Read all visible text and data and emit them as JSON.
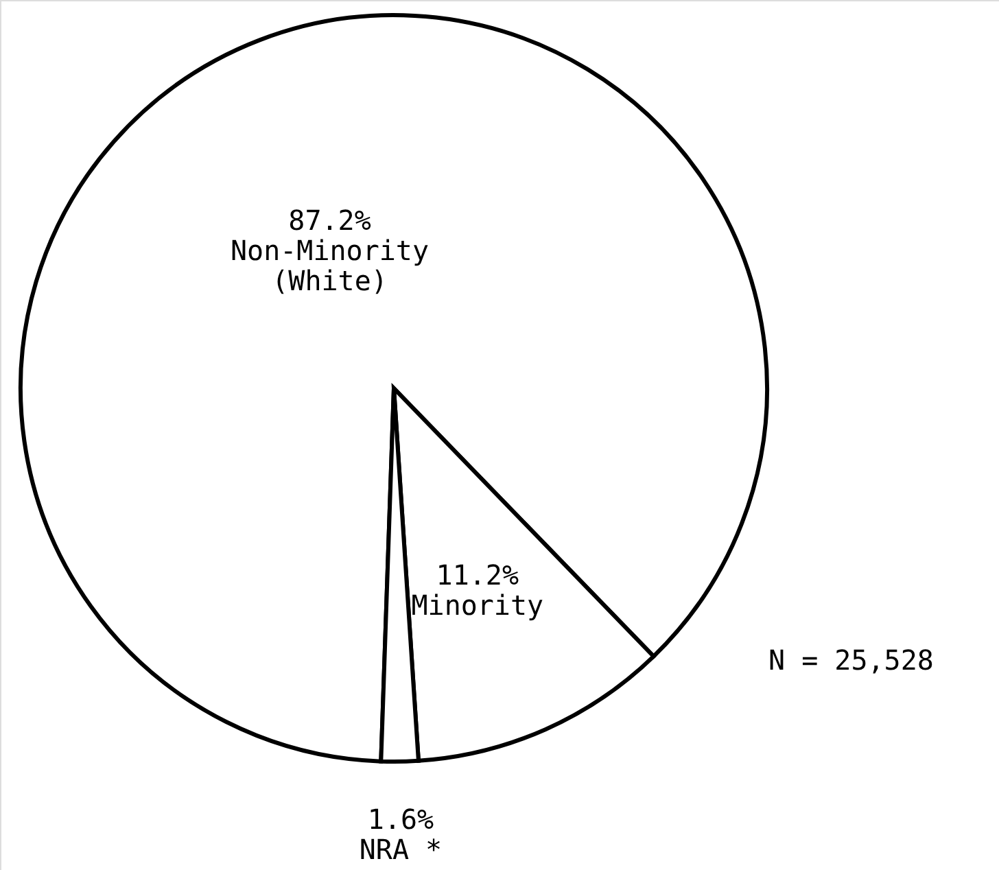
{
  "chart_data": {
    "type": "pie",
    "categories": [
      "Non-Minority\n(White)",
      "Minority",
      "NRA *"
    ],
    "values": [
      87.2,
      11.2,
      1.6
    ],
    "value_labels": [
      "87.2%",
      "11.2%",
      "1.6%"
    ],
    "colors": [
      "#ffffff",
      "#ffffff",
      "#ffffff"
    ],
    "annotations": [
      "N = 25,528"
    ]
  }
}
